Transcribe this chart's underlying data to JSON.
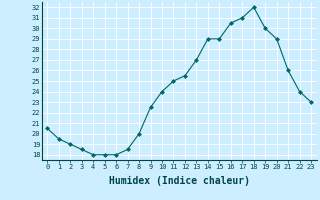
{
  "x": [
    0,
    1,
    2,
    3,
    4,
    5,
    6,
    7,
    8,
    9,
    10,
    11,
    12,
    13,
    14,
    15,
    16,
    17,
    18,
    19,
    20,
    21,
    22,
    23
  ],
  "y": [
    20.5,
    19.5,
    19.0,
    18.5,
    18.0,
    18.0,
    18.0,
    18.5,
    20.0,
    22.5,
    24.0,
    25.0,
    25.5,
    27.0,
    29.0,
    29.0,
    30.5,
    31.0,
    32.0,
    30.0,
    29.0,
    26.0,
    24.0,
    23.0
  ],
  "line_color": "#006666",
  "marker": "D",
  "marker_size": 2,
  "bg_color": "#cceeff",
  "grid_color": "#ffffff",
  "xlabel": "Humidex (Indice chaleur)",
  "ylim": [
    17.5,
    32.5
  ],
  "xlim": [
    -0.5,
    23.5
  ],
  "yticks": [
    18,
    19,
    20,
    21,
    22,
    23,
    24,
    25,
    26,
    27,
    28,
    29,
    30,
    31,
    32
  ],
  "xticks": [
    0,
    1,
    2,
    3,
    4,
    5,
    6,
    7,
    8,
    9,
    10,
    11,
    12,
    13,
    14,
    15,
    16,
    17,
    18,
    19,
    20,
    21,
    22,
    23
  ],
  "xtick_labels": [
    "0",
    "1",
    "2",
    "3",
    "4",
    "5",
    "6",
    "7",
    "8",
    "9",
    "10",
    "11",
    "12",
    "13",
    "14",
    "15",
    "16",
    "17",
    "18",
    "19",
    "20",
    "21",
    "22",
    "23"
  ]
}
